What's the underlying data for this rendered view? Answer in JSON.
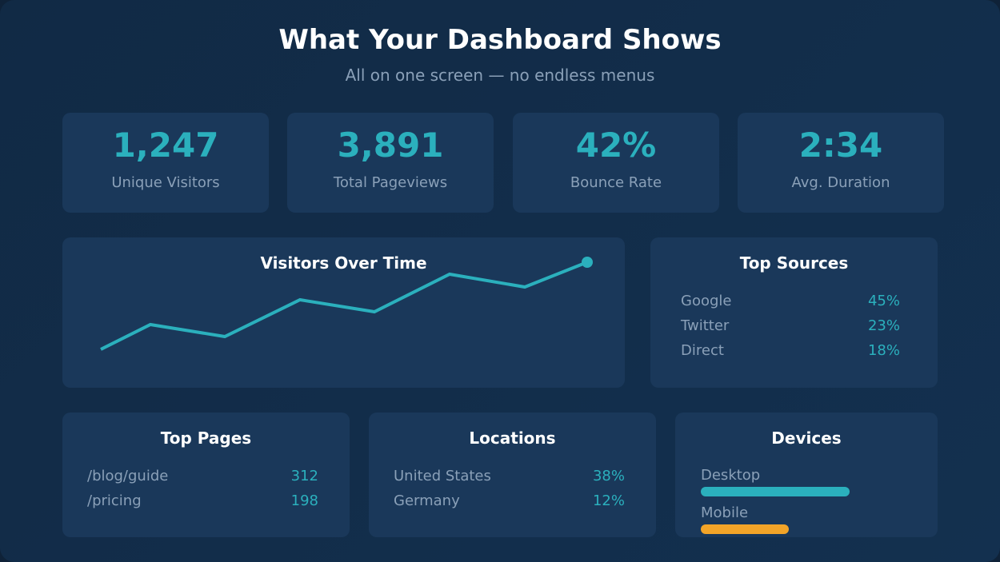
{
  "header": {
    "title": "What Your Dashboard Shows",
    "subtitle": "All on one screen — no endless menus"
  },
  "stats": [
    {
      "value": "1,247",
      "label": "Unique Visitors"
    },
    {
      "value": "3,891",
      "label": "Total Pageviews"
    },
    {
      "value": "42%",
      "label": "Bounce Rate"
    },
    {
      "value": "2:34",
      "label": "Avg. Duration"
    }
  ],
  "chart_data": {
    "type": "line",
    "title": "Visitors Over Time",
    "values": [
      0,
      31,
      16,
      62,
      47,
      94,
      78,
      109
    ],
    "grid": false,
    "color": "#2bb0bd"
  },
  "sources": {
    "title": "Top Sources",
    "items": [
      {
        "name": "Google",
        "value": "45%"
      },
      {
        "name": "Twitter",
        "value": "23%"
      },
      {
        "name": "Direct",
        "value": "18%"
      }
    ]
  },
  "pages": {
    "title": "Top Pages",
    "items": [
      {
        "name": "/blog/guide",
        "value": "312"
      },
      {
        "name": "/pricing",
        "value": "198"
      }
    ]
  },
  "locations": {
    "title": "Locations",
    "items": [
      {
        "name": "United States",
        "value": "38%"
      },
      {
        "name": "Germany",
        "value": "12%"
      }
    ]
  },
  "devices": {
    "title": "Devices",
    "items": [
      {
        "name": "Desktop",
        "level": 0.63,
        "color": "#2bb0bd"
      },
      {
        "name": "Mobile",
        "level": 0.37,
        "color": "#f2a428"
      }
    ]
  }
}
